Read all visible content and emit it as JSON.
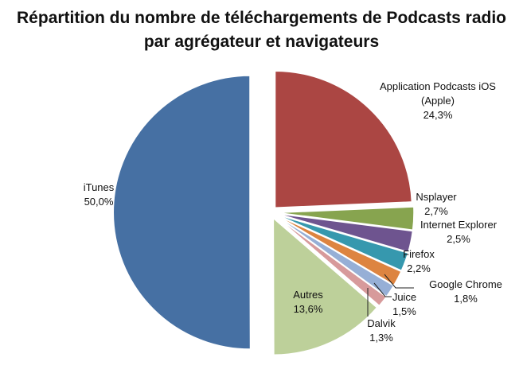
{
  "title_line1": "Répartition du nombre de téléchargements de Podcasts radio",
  "title_line2": "par agrégateur et navigateurs",
  "chart_data": {
    "type": "pie",
    "title": "Répartition du nombre de téléchargements de Podcasts radio par agrégateur et navigateurs",
    "labels": [
      "Application Podcasts iOS (Apple)",
      "Nsplayer",
      "Internet Explorer",
      "Firefox",
      "Google Chrome",
      "Juice",
      "Dalvik",
      "Autres",
      "iTunes"
    ],
    "values": [
      24.3,
      2.7,
      2.5,
      2.2,
      1.8,
      1.5,
      1.3,
      13.6,
      50.0
    ],
    "value_labels": [
      "24,3%",
      "2,7%",
      "2,5%",
      "2,2%",
      "1,8%",
      "1,5%",
      "1,3%",
      "13,6%",
      "50,0%"
    ],
    "colors": [
      "#AB4643",
      "#87A44F",
      "#6E548F",
      "#3698AE",
      "#DD8440",
      "#96AFD6",
      "#D79A9B",
      "#BDD09A",
      "#4670A3"
    ],
    "exploded": true,
    "legend": "none"
  }
}
